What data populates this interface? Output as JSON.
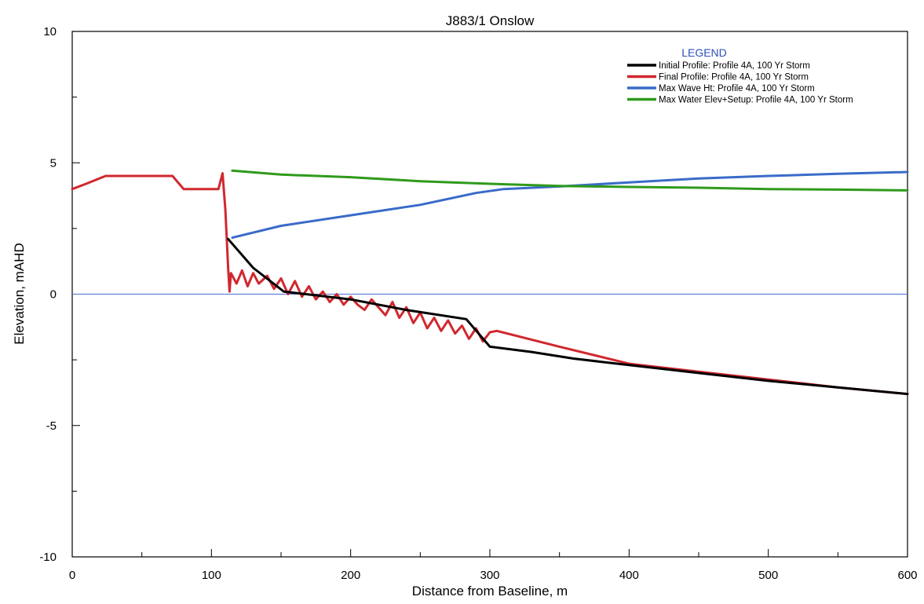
{
  "chart_data": {
    "type": "line",
    "title": "J883/1 Onslow",
    "xlabel": "Distance from Baseline, m",
    "ylabel": "Elevation, mAHD",
    "xlim": [
      0,
      600
    ],
    "ylim": [
      -10,
      10
    ],
    "x_ticks": [
      0,
      100,
      200,
      300,
      400,
      500,
      600
    ],
    "y_ticks": [
      -10,
      -5,
      0,
      5,
      10
    ],
    "grid": false,
    "reference_line_y": 0,
    "legend": {
      "title": "LEGEND",
      "position": "top-right"
    },
    "series": [
      {
        "name": "Initial Profile: Profile 4A, 100 Yr Storm",
        "color": "#000000",
        "x": [
          112,
          130,
          152,
          200,
          240,
          283,
          300,
          330,
          360,
          400,
          450,
          500,
          550,
          600
        ],
        "y": [
          2.1,
          1.0,
          0.1,
          -0.2,
          -0.6,
          -0.95,
          -2.0,
          -2.2,
          -2.45,
          -2.7,
          -3.0,
          -3.3,
          -3.55,
          -3.8
        ]
      },
      {
        "name": "Final Profile: Profile 4A, 100 Yr Storm",
        "color": "#d0282f",
        "x": [
          0,
          10,
          24,
          50,
          72,
          80,
          90,
          100,
          105,
          108,
          110,
          112,
          113,
          114,
          118,
          122,
          126,
          130,
          134,
          140,
          145,
          150,
          155,
          160,
          165,
          170,
          175,
          180,
          185,
          190,
          195,
          200,
          205,
          210,
          215,
          220,
          225,
          230,
          235,
          240,
          245,
          250,
          255,
          260,
          265,
          270,
          275,
          280,
          285,
          290,
          295,
          300,
          305,
          350,
          400,
          450,
          500,
          550,
          600
        ],
        "y": [
          4.0,
          4.2,
          4.5,
          4.5,
          4.5,
          4.0,
          4.0,
          4.0,
          4.0,
          4.6,
          3.2,
          1.0,
          0.1,
          0.8,
          0.4,
          0.9,
          0.3,
          0.8,
          0.4,
          0.7,
          0.2,
          0.6,
          0.0,
          0.5,
          -0.1,
          0.3,
          -0.2,
          0.1,
          -0.3,
          0.0,
          -0.4,
          -0.1,
          -0.4,
          -0.6,
          -0.2,
          -0.5,
          -0.8,
          -0.3,
          -0.9,
          -0.5,
          -1.1,
          -0.7,
          -1.3,
          -0.9,
          -1.4,
          -1.0,
          -1.5,
          -1.2,
          -1.7,
          -1.3,
          -1.8,
          -1.45,
          -1.4,
          -2.0,
          -2.65,
          -2.95,
          -3.25,
          -3.55,
          -3.8
        ]
      },
      {
        "name": "Max Wave Ht: Profile 4A, 100 Yr Storm",
        "color": "#3a6bc9",
        "x": [
          115,
          150,
          200,
          250,
          290,
          310,
          350,
          400,
          450,
          500,
          550,
          600
        ],
        "y": [
          2.15,
          2.6,
          3.0,
          3.4,
          3.85,
          4.0,
          4.1,
          4.25,
          4.4,
          4.5,
          4.58,
          4.65
        ]
      },
      {
        "name": "Max Water Elev+Setup: Profile 4A, 100 Yr Storm",
        "color": "#2f9a1c",
        "x": [
          115,
          150,
          200,
          250,
          300,
          350,
          400,
          450,
          500,
          550,
          600
        ],
        "y": [
          4.7,
          4.55,
          4.45,
          4.3,
          4.2,
          4.12,
          4.08,
          4.05,
          4.0,
          3.98,
          3.95
        ]
      }
    ]
  }
}
